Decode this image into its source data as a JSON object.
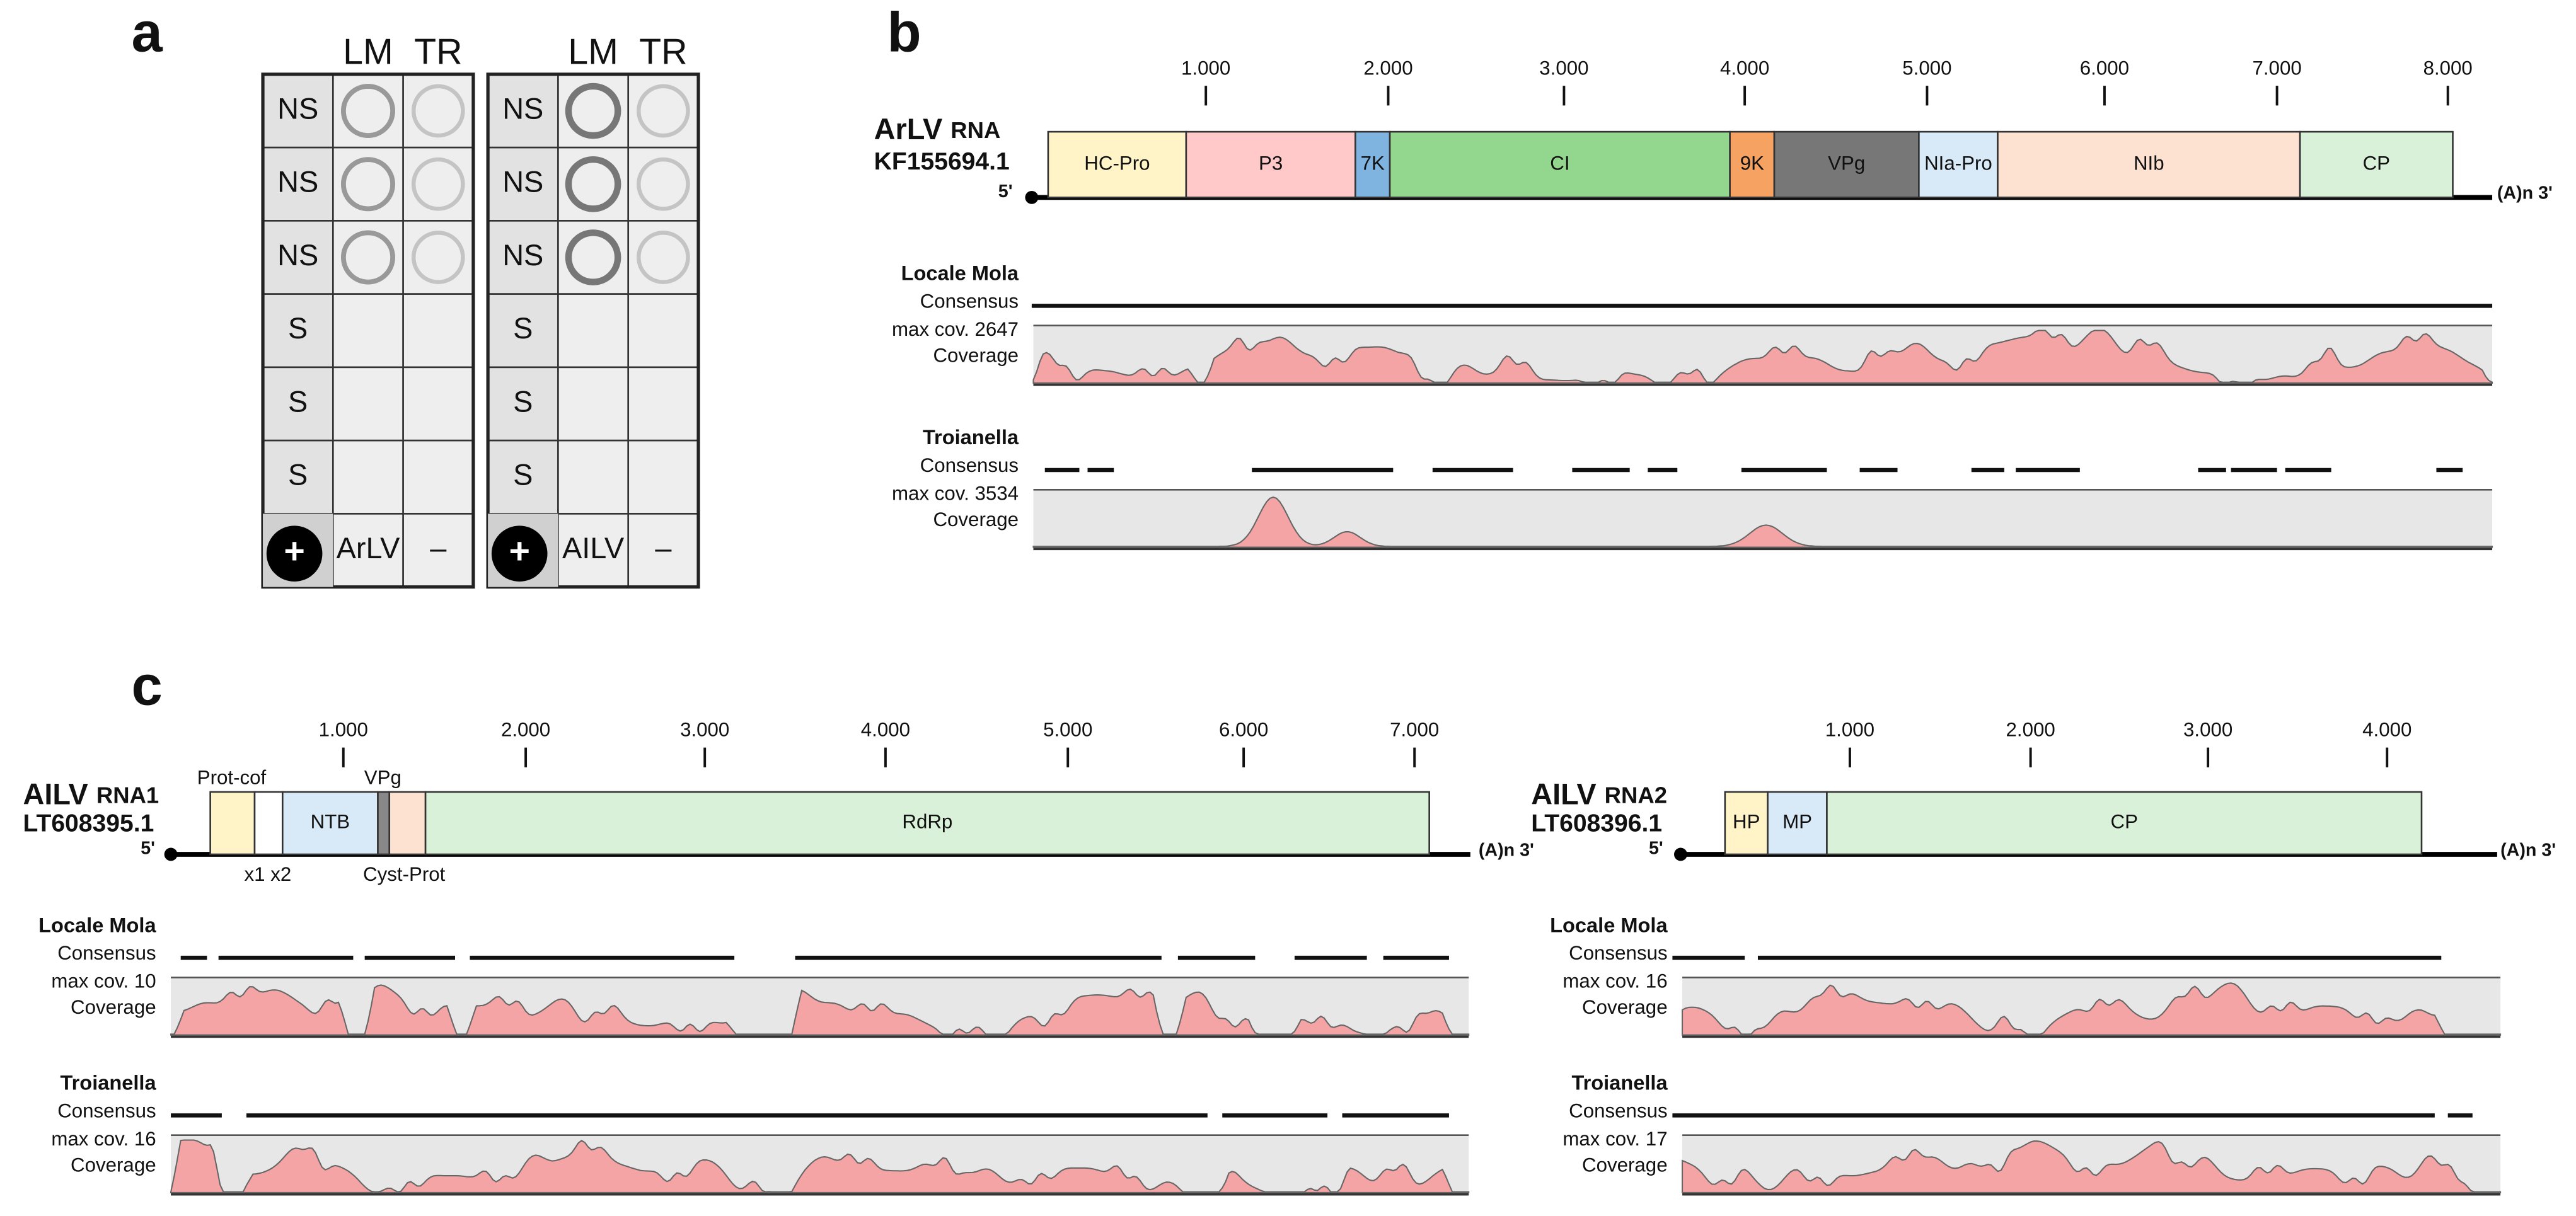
{
  "panel_a": {
    "label": "a",
    "blots": [
      {
        "columns": [
          "LM",
          "TR"
        ],
        "rows": [
          "NS",
          "NS",
          "NS",
          "S",
          "S",
          "S"
        ],
        "positive": "+",
        "virus": "ArLV",
        "negative": "–"
      },
      {
        "columns": [
          "LM",
          "TR"
        ],
        "rows": [
          "NS",
          "NS",
          "NS",
          "S",
          "S",
          "S"
        ],
        "positive": "+",
        "virus": "AILV",
        "negative": "–"
      }
    ]
  },
  "panel_b": {
    "label": "b",
    "genomes": [
      {
        "name": "ArLV",
        "molecule": "RNA",
        "accession": "KF155694.1",
        "five_prime": "5'",
        "three_prime": "(A)n 3'",
        "ruler": [
          "1.000",
          "2.000",
          "3.000",
          "4.000",
          "5.000",
          "6.000",
          "7.000",
          "8.000"
        ],
        "genes": [
          "HC-Pro",
          "P3",
          "7K",
          "CI",
          "9K",
          "VPg",
          "NIa-Pro",
          "NIb",
          "CP"
        ],
        "tracks": [
          {
            "site": "Locale Mola",
            "consensus": "Consensus",
            "max_cov": "max cov. 2647",
            "coverage": "Coverage"
          },
          {
            "site": "Troianella",
            "consensus": "Consensus",
            "max_cov": "max cov. 3534",
            "coverage": "Coverage"
          }
        ]
      }
    ]
  },
  "panel_c": {
    "label": "c",
    "genomes": [
      {
        "name": "AILV",
        "molecule": "RNA1",
        "accession": "LT608395.1",
        "five_prime": "5'",
        "three_prime": "(A)n 3'",
        "ruler": [
          "1.000",
          "2.000",
          "3.000",
          "4.000",
          "5.000",
          "6.000",
          "7.000"
        ],
        "genes": [
          "NTB",
          "RdRp"
        ],
        "annotations": [
          "Prot-cof",
          "VPg",
          "x1 x2",
          "Cyst-Prot"
        ],
        "tracks": [
          {
            "site": "Locale Mola",
            "consensus": "Consensus",
            "max_cov": "max cov. 10",
            "coverage": "Coverage"
          },
          {
            "site": "Troianella",
            "consensus": "Consensus",
            "max_cov": "max cov. 16",
            "coverage": "Coverage"
          }
        ]
      },
      {
        "name": "AILV",
        "molecule": "RNA2",
        "accession": "LT608396.1",
        "five_prime": "5'",
        "three_prime": "(A)n 3'",
        "ruler": [
          "1.000",
          "2.000",
          "3.000",
          "4.000"
        ],
        "genes": [
          "HP",
          "MP",
          "CP"
        ],
        "tracks": [
          {
            "site": "Locale Mola",
            "consensus": "Consensus",
            "max_cov": "max cov. 16",
            "coverage": "Coverage"
          },
          {
            "site": "Troianella",
            "consensus": "Consensus",
            "max_cov": "max cov. 17",
            "coverage": "Coverage"
          }
        ]
      }
    ]
  }
}
